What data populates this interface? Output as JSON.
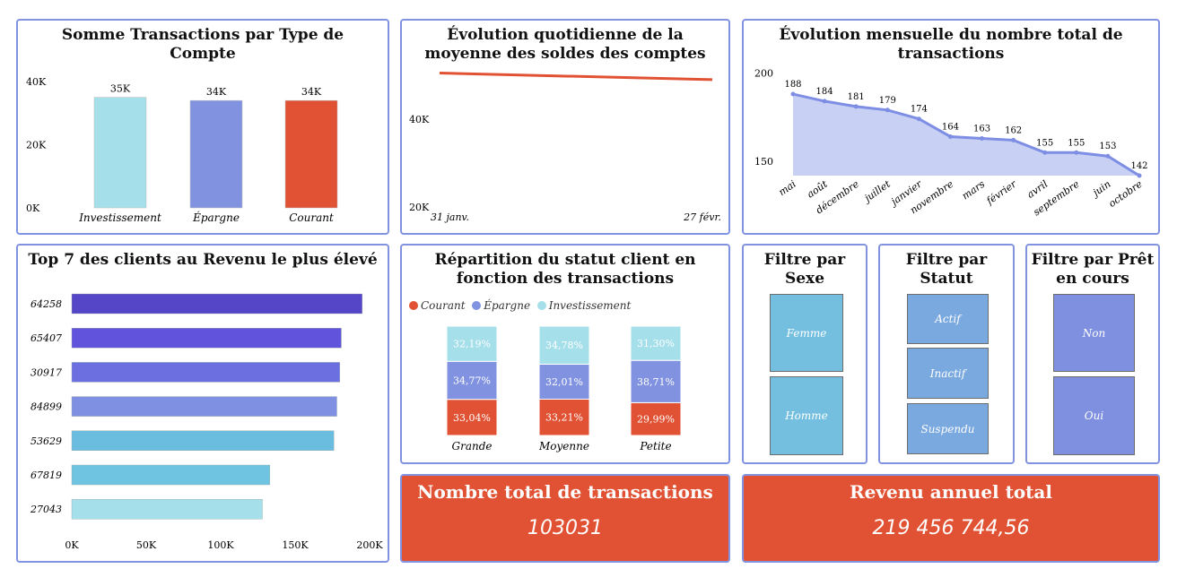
{
  "colors": {
    "border": "#8193e0",
    "red": "#e05233",
    "light_blue": "#a4dfea",
    "mid_blue": "#8193e0",
    "area": "#c8d0f3",
    "line": "#7d8ee4"
  },
  "card1": {
    "title": "Somme Transactions par Type de Compte",
    "chart_data": {
      "type": "bar",
      "categories": [
        "Investissement",
        "Épargne",
        "Courant"
      ],
      "values": [
        35000,
        34000,
        34000
      ],
      "data_labels": [
        "35K",
        "34K",
        "34K"
      ],
      "colors": [
        "#a4dfea",
        "#8193e0",
        "#e05233"
      ],
      "yticks": [
        "0K",
        "20K",
        "40K"
      ],
      "ylim": [
        0,
        40000
      ]
    }
  },
  "card2": {
    "title": "Évolution quotidienne de la moyenne des soldes des comptes",
    "chart_data": {
      "type": "line",
      "x": [
        "31 janv.",
        "27 févr."
      ],
      "values": [
        50500,
        49000
      ],
      "yticks": [
        {
          "label": "40K",
          "value": 40000
        },
        {
          "label": "20K",
          "value": 20000
        }
      ],
      "ylim": [
        20000,
        55000
      ],
      "color": "#e05233"
    }
  },
  "card3": {
    "title": "Évolution mensuelle du nombre total de transactions",
    "chart_data": {
      "type": "area",
      "categories": [
        "mai",
        "août",
        "décembre",
        "juillet",
        "janvier",
        "novembre",
        "mars",
        "février",
        "avril",
        "septembre",
        "juin",
        "octobre"
      ],
      "values": [
        188,
        184,
        181,
        179,
        174,
        164,
        163,
        162,
        155,
        155,
        153,
        142
      ],
      "yticks": [
        {
          "label": "200",
          "value": 200
        },
        {
          "label": "150",
          "value": 150
        }
      ],
      "ylim": [
        142,
        200
      ]
    }
  },
  "card4": {
    "title": "Top 7 des clients au Revenu le plus élevé",
    "chart_data": {
      "type": "bar",
      "orientation": "horizontal",
      "categories": [
        "64258",
        "65407",
        "30917",
        "84899",
        "53629",
        "67819",
        "27043"
      ],
      "values": [
        195000,
        181000,
        180000,
        178000,
        176000,
        133000,
        128000
      ],
      "colors": [
        "#5446c7",
        "#6153dc",
        "#6b6fe0",
        "#7f8fe2",
        "#6bbde0",
        "#6fc4e1",
        "#a4dfea"
      ],
      "xticks": [
        "0K",
        "50K",
        "100K",
        "150K",
        "200K"
      ],
      "xlim": [
        0,
        200000
      ]
    }
  },
  "card5": {
    "title": "Répartition du statut client en fonction des transactions",
    "legend": [
      {
        "label": "Courant",
        "color": "#e05233"
      },
      {
        "label": "Épargne",
        "color": "#8193e0"
      },
      {
        "label": "Investissement",
        "color": "#a4dfea"
      }
    ],
    "chart_data": {
      "type": "bar",
      "stacked": true,
      "categories": [
        "Grande",
        "Moyenne",
        "Petite"
      ],
      "series": [
        {
          "name": "Courant",
          "values": [
            33.04,
            33.21,
            29.99
          ],
          "labels": [
            "33,04%",
            "33,21%",
            "29,99%"
          ]
        },
        {
          "name": "Épargne",
          "values": [
            34.77,
            32.01,
            38.71
          ],
          "labels": [
            "34,77%",
            "32,01%",
            "38,71%"
          ]
        },
        {
          "name": "Investissement",
          "values": [
            32.19,
            34.78,
            31.3
          ],
          "labels": [
            "32,19%",
            "34,78%",
            "31,30%"
          ]
        }
      ]
    }
  },
  "slicers": {
    "sexe": {
      "title": "Filtre par Sexe",
      "options": [
        "Femme",
        "Homme"
      ]
    },
    "statut": {
      "title": "Filtre par Statut",
      "options": [
        "Actif",
        "Inactif",
        "Suspendu"
      ]
    },
    "pret": {
      "title": "Filtre par Prêt en cours",
      "options": [
        "Non",
        "Oui"
      ]
    }
  },
  "kpi1": {
    "title": "Nombre total de transactions",
    "value": "103031"
  },
  "kpi2": {
    "title": "Revenu annuel total",
    "value": "219 456 744,56"
  }
}
